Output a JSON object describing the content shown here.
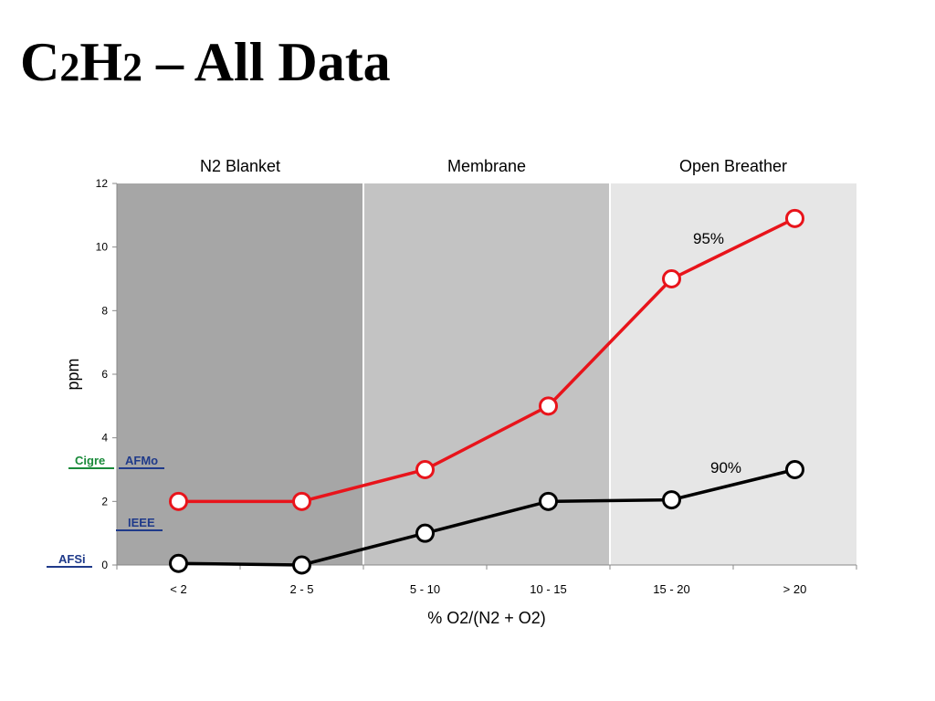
{
  "slide": {
    "title_parts": [
      "C",
      "2",
      "H",
      "2",
      " – All Data"
    ]
  },
  "chart_data": {
    "type": "line",
    "title": "",
    "xlabel": "% O2/(N2 + O2)",
    "ylabel": "ppm",
    "categories": [
      "< 2",
      "2 - 5",
      "5 - 10",
      "10 - 15",
      "15 - 20",
      "> 20"
    ],
    "ylim": [
      0,
      12
    ],
    "yticks": [
      0,
      2,
      4,
      6,
      8,
      10,
      12
    ],
    "grid": false,
    "regions": [
      {
        "label": "N2 Blanket",
        "from": 0,
        "to": 2,
        "color": "#a6a6a6"
      },
      {
        "label": "Membrane",
        "from": 2,
        "to": 4,
        "color": "#c3c3c3"
      },
      {
        "label": "Open Breather",
        "from": 4,
        "to": 6,
        "color": "#e6e6e6"
      }
    ],
    "series": [
      {
        "label": "95%",
        "color": "#e8141b",
        "values": [
          2.0,
          2.0,
          3.0,
          5.0,
          9.0,
          10.9
        ]
      },
      {
        "label": "90%",
        "color": "#000000",
        "values": [
          0.05,
          0.0,
          1.0,
          2.0,
          2.05,
          3.0
        ]
      }
    ],
    "reference_lines": [
      {
        "labels": [
          "Cigre",
          "AFMo"
        ],
        "colors": [
          "#1a8a3a",
          "#1f3a8a"
        ],
        "value": 3.1
      },
      {
        "labels": [
          "IEEE"
        ],
        "colors": [
          "#1f3a8a"
        ],
        "value": 1.15
      },
      {
        "labels": [
          "AFSi"
        ],
        "colors": [
          "#1f3a8a"
        ],
        "value": 0.0
      }
    ]
  }
}
